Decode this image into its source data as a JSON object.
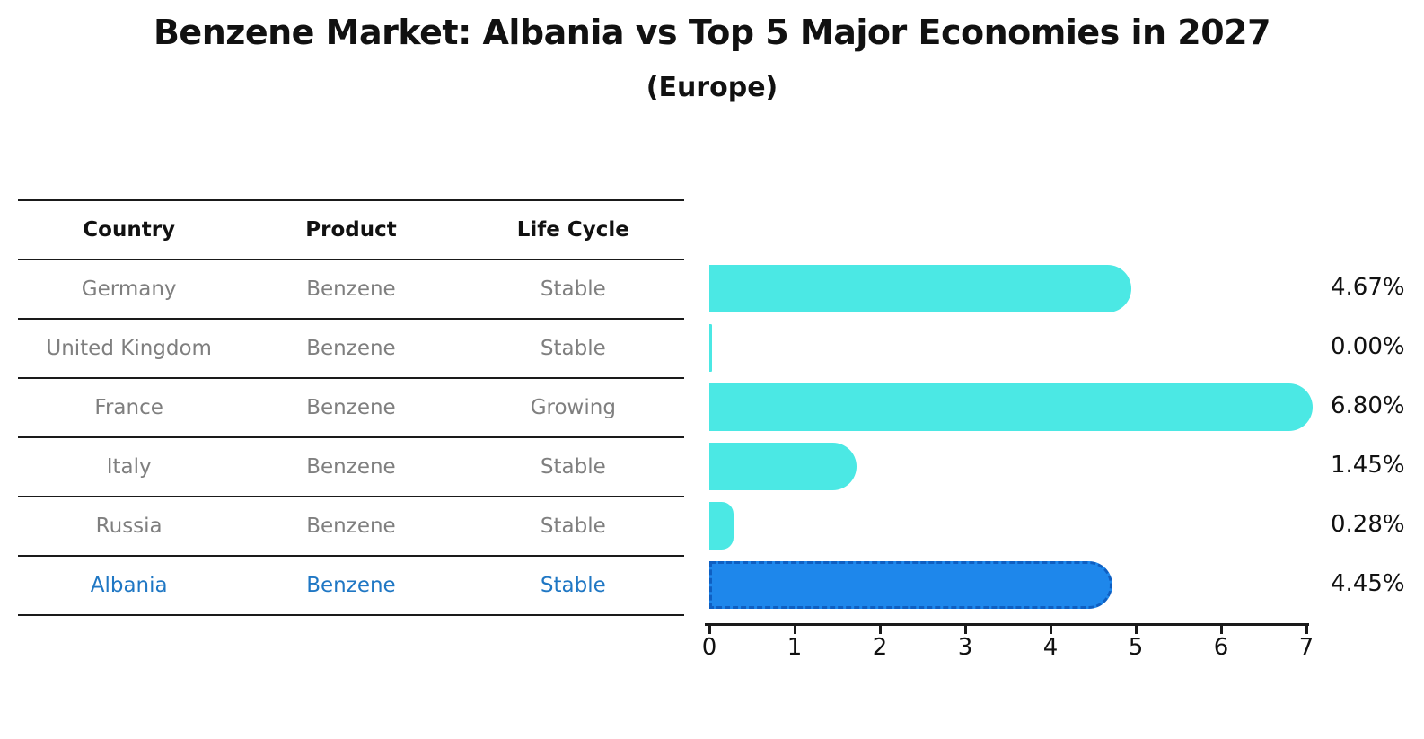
{
  "title": "Benzene Market: Albania vs Top 5 Major Economies in 2027",
  "subtitle": "(Europe)",
  "colors": {
    "bar_default": "#4be8e4",
    "bar_highlight": "#1e87eb",
    "bar_highlight_border": "#0e5fc2",
    "table_text": "#7f7f7f",
    "highlight_text": "#1f77c4",
    "text": "#111111"
  },
  "table": {
    "headers": [
      "Country",
      "Product",
      "Life Cycle"
    ],
    "rows": [
      {
        "country": "Germany",
        "product": "Benzene",
        "life_cycle": "Stable",
        "highlight": false
      },
      {
        "country": "United Kingdom",
        "product": "Benzene",
        "life_cycle": "Stable",
        "highlight": false
      },
      {
        "country": "France",
        "product": "Benzene",
        "life_cycle": "Growing",
        "highlight": false
      },
      {
        "country": "Italy",
        "product": "Benzene",
        "life_cycle": "Stable",
        "highlight": false
      },
      {
        "country": "Russia",
        "product": "Benzene",
        "life_cycle": "Stable",
        "highlight": false
      },
      {
        "country": "Albania",
        "product": "Benzene",
        "life_cycle": "Stable",
        "highlight": true
      }
    ]
  },
  "chart_data": {
    "type": "bar",
    "orientation": "horizontal",
    "title": "Benzene Market: Albania vs Top 5 Major Economies in 2027",
    "subtitle": "(Europe)",
    "categories": [
      "Germany",
      "United Kingdom",
      "France",
      "Italy",
      "Russia",
      "Albania"
    ],
    "values": [
      4.67,
      0.0,
      6.8,
      1.45,
      0.28,
      4.45
    ],
    "value_labels": [
      "4.67%",
      "0.00%",
      "6.80%",
      "1.45%",
      "0.28%",
      "4.45%"
    ],
    "highlight_index": 5,
    "xlim": [
      0,
      7
    ],
    "x_ticks": [
      0,
      1,
      2,
      3,
      4,
      5,
      6,
      7
    ],
    "grid": false,
    "legend": false
  }
}
